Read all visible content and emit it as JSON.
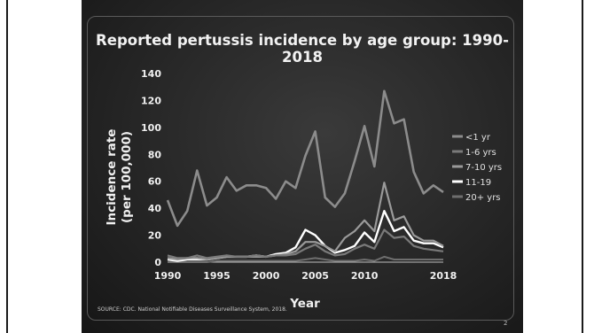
{
  "page": {
    "source": "SOURCE: CDC. National Notifiable Diseases Surveillance System, 2018.",
    "page_number": "2"
  },
  "chart_data": {
    "type": "line",
    "title": "Reported pertussis incidence by age group: 1990-2018",
    "xlabel": "Year",
    "ylabel_lines": [
      "Incidence rate",
      "(per 100,000)"
    ],
    "xlim": [
      1990,
      2018
    ],
    "ylim": [
      0,
      140
    ],
    "y_ticks": [
      0,
      20,
      40,
      60,
      80,
      100,
      120,
      140
    ],
    "x_tick_labels": [
      {
        "x": 1990,
        "label": "1990"
      },
      {
        "x": 1995,
        "label": "1995"
      },
      {
        "x": 2000,
        "label": "2000"
      },
      {
        "x": 2005,
        "label": "2005"
      },
      {
        "x": 2010,
        "label": "2010"
      },
      {
        "x": 2018,
        "label": "2018"
      }
    ],
    "grid": false,
    "legend_position": "right",
    "x": [
      1990,
      1991,
      1992,
      1993,
      1994,
      1995,
      1996,
      1997,
      1998,
      1999,
      2000,
      2001,
      2002,
      2003,
      2004,
      2005,
      2006,
      2007,
      2008,
      2009,
      2010,
      2011,
      2012,
      2013,
      2014,
      2015,
      2016,
      2017,
      2018
    ],
    "series": [
      {
        "name": "<1 yr",
        "color": "#8c8c8c",
        "width": 2.6,
        "values": [
          46,
          27,
          38,
          68,
          42,
          48,
          63,
          53,
          57,
          57,
          55,
          47,
          60,
          55,
          79,
          97,
          48,
          41,
          51,
          75,
          101,
          71,
          127,
          103,
          106,
          67,
          51,
          57,
          52
        ]
      },
      {
        "name": "1-6 yrs",
        "color": "#7a7a7a",
        "width": 2.2,
        "values": [
          5,
          3,
          3,
          5,
          3,
          4,
          5,
          4,
          4,
          5,
          4,
          5,
          5,
          6,
          10,
          13,
          8,
          5,
          6,
          10,
          13,
          10,
          24,
          18,
          19,
          12,
          10,
          9,
          8
        ]
      },
      {
        "name": "7-10 yrs",
        "color": "#9a9a9a",
        "width": 2.2,
        "values": [
          3,
          2,
          3,
          3,
          2,
          3,
          4,
          4,
          4,
          4,
          4,
          5,
          6,
          8,
          15,
          15,
          12,
          8,
          18,
          23,
          31,
          23,
          59,
          31,
          34,
          20,
          16,
          16,
          12
        ]
      },
      {
        "name": "11-19",
        "color": "#ffffff",
        "width": 2.4,
        "values": [
          2,
          1,
          2,
          2,
          2,
          3,
          4,
          4,
          4,
          5,
          4,
          6,
          7,
          11,
          24,
          20,
          12,
          7,
          9,
          12,
          22,
          15,
          38,
          23,
          26,
          16,
          14,
          14,
          11
        ]
      },
      {
        "name": "20+ yrs",
        "color": "#6e6e6e",
        "width": 2.0,
        "values": [
          0,
          0,
          0,
          0,
          0,
          1,
          1,
          1,
          1,
          1,
          1,
          1,
          1,
          1,
          2,
          3,
          2,
          1,
          1,
          1,
          2,
          1,
          4,
          2,
          2,
          2,
          2,
          2,
          2
        ]
      }
    ]
  }
}
